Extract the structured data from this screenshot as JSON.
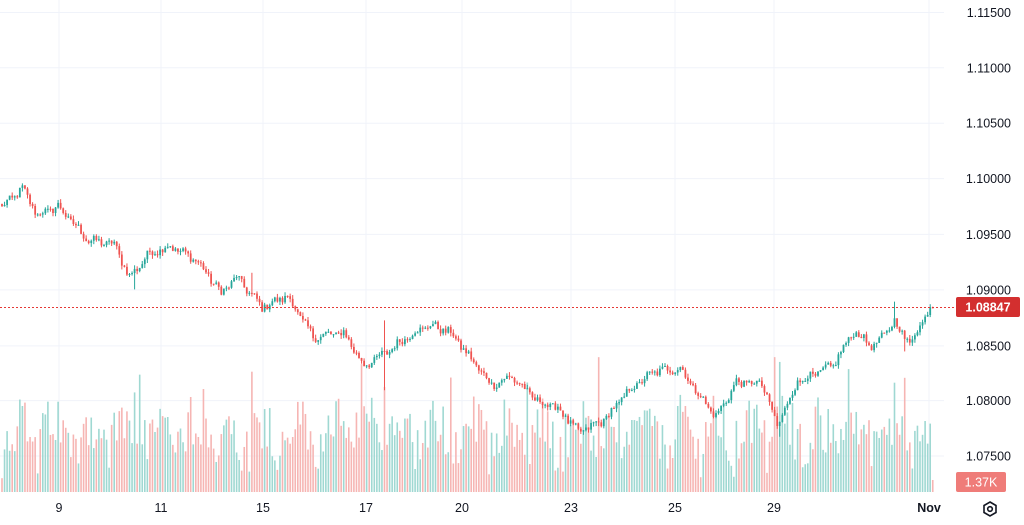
{
  "chart_data": {
    "type": "candlestick",
    "y_axis": {
      "ticks": [
        "1.11500",
        "1.11000",
        "1.10500",
        "1.10000",
        "1.09500",
        "1.09000",
        "1.08500",
        "1.08000",
        "1.07500"
      ],
      "range": [
        1.073,
        1.117
      ]
    },
    "x_axis": {
      "ticks": [
        "9",
        "11",
        "15",
        "17",
        "20",
        "23",
        "25",
        "29",
        "Nov"
      ]
    },
    "price_waypoints": [
      [
        0,
        1.0975
      ],
      [
        8,
        1.0992
      ],
      [
        14,
        1.0968
      ],
      [
        22,
        1.0976
      ],
      [
        34,
        1.0945
      ],
      [
        44,
        1.0942
      ],
      [
        50,
        1.0912
      ],
      [
        58,
        1.0934
      ],
      [
        66,
        1.094
      ],
      [
        76,
        1.0928
      ],
      [
        86,
        1.0898
      ],
      [
        92,
        1.0912
      ],
      [
        102,
        1.0885
      ],
      [
        112,
        1.0895
      ],
      [
        122,
        1.0858
      ],
      [
        134,
        1.0862
      ],
      [
        142,
        1.0832
      ],
      [
        150,
        1.0843
      ],
      [
        160,
        1.086
      ],
      [
        168,
        1.0869
      ],
      [
        176,
        1.0862
      ],
      [
        184,
        1.0838
      ],
      [
        192,
        1.0815
      ],
      [
        200,
        1.0822
      ],
      [
        210,
        1.08
      ],
      [
        218,
        1.0794
      ],
      [
        226,
        1.0772
      ],
      [
        236,
        1.0783
      ],
      [
        246,
        1.081
      ],
      [
        256,
        1.0827
      ],
      [
        266,
        1.083
      ],
      [
        272,
        1.081
      ],
      [
        280,
        1.0786
      ],
      [
        288,
        1.0817
      ],
      [
        298,
        1.0816
      ],
      [
        304,
        1.0778
      ],
      [
        312,
        1.0818
      ],
      [
        320,
        1.0825
      ],
      [
        326,
        1.0833
      ],
      [
        334,
        1.0863
      ],
      [
        342,
        1.0849
      ],
      [
        350,
        1.0872
      ],
      [
        356,
        1.0852
      ],
      [
        364,
        1.0885
      ]
    ],
    "spikes": [
      {
        "index": 52,
        "low": 1.0901
      },
      {
        "index": 98,
        "high": 1.0916
      },
      {
        "index": 150,
        "low": 1.081,
        "high": 1.0873
      },
      {
        "index": 305,
        "low": 1.0768
      },
      {
        "index": 350,
        "high": 1.089
      },
      {
        "index": 354,
        "low": 1.0845
      }
    ],
    "num_candles": 366,
    "last_price": "1.08847",
    "volume_label": "1.37K",
    "colors": {
      "up": "#26a69a",
      "down": "#ef5350",
      "up_volume": "#9fd8d2",
      "down_volume": "#f6b5b3",
      "grid": "#f0f3fa",
      "axis_text": "#131722",
      "price_line": "#e53935",
      "price_label_bg": "#d32f2f",
      "volume_label_bg": "#ef7c79"
    }
  },
  "settings_icon": "gear-icon"
}
